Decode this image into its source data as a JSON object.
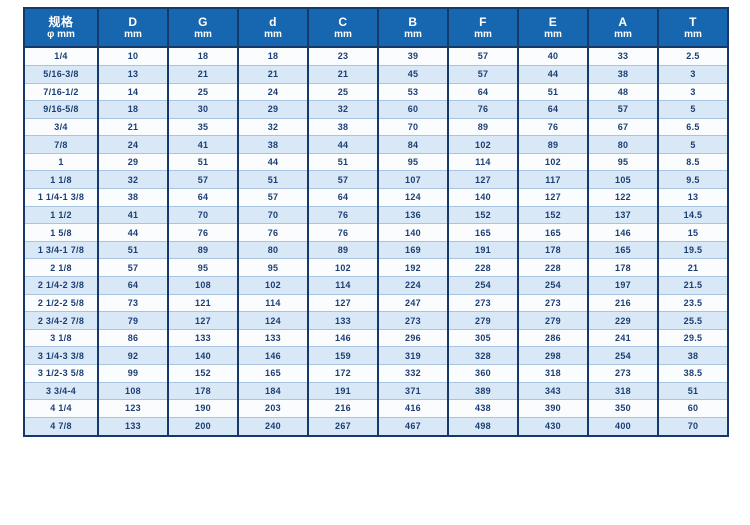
{
  "table": {
    "columns": [
      {
        "line1": "规格",
        "line2": "φ mm"
      },
      {
        "line1": "D",
        "line2": "mm"
      },
      {
        "line1": "G",
        "line2": "mm"
      },
      {
        "line1": "d",
        "line2": "mm"
      },
      {
        "line1": "C",
        "line2": "mm"
      },
      {
        "line1": "B",
        "line2": "mm"
      },
      {
        "line1": "F",
        "line2": "mm"
      },
      {
        "line1": "E",
        "line2": "mm"
      },
      {
        "line1": "A",
        "line2": "mm"
      },
      {
        "line1": "T",
        "line2": "mm"
      }
    ],
    "rows": [
      [
        "1/4",
        "10",
        "18",
        "18",
        "23",
        "39",
        "57",
        "40",
        "33",
        "2.5"
      ],
      [
        "5/16-3/8",
        "13",
        "21",
        "21",
        "21",
        "45",
        "57",
        "44",
        "38",
        "3"
      ],
      [
        "7/16-1/2",
        "14",
        "25",
        "24",
        "25",
        "53",
        "64",
        "51",
        "48",
        "3"
      ],
      [
        "9/16-5/8",
        "18",
        "30",
        "29",
        "32",
        "60",
        "76",
        "64",
        "57",
        "5"
      ],
      [
        "3/4",
        "21",
        "35",
        "32",
        "38",
        "70",
        "89",
        "76",
        "67",
        "6.5"
      ],
      [
        "7/8",
        "24",
        "41",
        "38",
        "44",
        "84",
        "102",
        "89",
        "80",
        "5"
      ],
      [
        "1",
        "29",
        "51",
        "44",
        "51",
        "95",
        "114",
        "102",
        "95",
        "8.5"
      ],
      [
        "1 1/8",
        "32",
        "57",
        "51",
        "57",
        "107",
        "127",
        "117",
        "105",
        "9.5"
      ],
      [
        "1 1/4-1 3/8",
        "38",
        "64",
        "57",
        "64",
        "124",
        "140",
        "127",
        "122",
        "13"
      ],
      [
        "1 1/2",
        "41",
        "70",
        "70",
        "76",
        "136",
        "152",
        "152",
        "137",
        "14.5"
      ],
      [
        "1 5/8",
        "44",
        "76",
        "76",
        "76",
        "140",
        "165",
        "165",
        "146",
        "15"
      ],
      [
        "1 3/4-1 7/8",
        "51",
        "89",
        "80",
        "89",
        "169",
        "191",
        "178",
        "165",
        "19.5"
      ],
      [
        "2 1/8",
        "57",
        "95",
        "95",
        "102",
        "192",
        "228",
        "228",
        "178",
        "21"
      ],
      [
        "2 1/4-2 3/8",
        "64",
        "108",
        "102",
        "114",
        "224",
        "254",
        "254",
        "197",
        "21.5"
      ],
      [
        "2 1/2-2 5/8",
        "73",
        "121",
        "114",
        "127",
        "247",
        "273",
        "273",
        "216",
        "23.5"
      ],
      [
        "2 3/4-2 7/8",
        "79",
        "127",
        "124",
        "133",
        "273",
        "279",
        "279",
        "229",
        "25.5"
      ],
      [
        "3 1/8",
        "86",
        "133",
        "133",
        "146",
        "296",
        "305",
        "286",
        "241",
        "29.5"
      ],
      [
        "3 1/4-3 3/8",
        "92",
        "140",
        "146",
        "159",
        "319",
        "328",
        "298",
        "254",
        "38"
      ],
      [
        "3 1/2-3 5/8",
        "99",
        "152",
        "165",
        "172",
        "332",
        "360",
        "318",
        "273",
        "38.5"
      ],
      [
        "3 3/4-4",
        "108",
        "178",
        "184",
        "191",
        "371",
        "389",
        "343",
        "318",
        "51"
      ],
      [
        "4 1/4",
        "123",
        "190",
        "203",
        "216",
        "416",
        "438",
        "390",
        "350",
        "60"
      ],
      [
        "4 7/8",
        "133",
        "200",
        "240",
        "267",
        "467",
        "498",
        "430",
        "400",
        "70"
      ]
    ],
    "colors": {
      "header_bg": "#1766b0",
      "header_text": "#ffffff",
      "border": "#16386b",
      "row_light": "#fafcfe",
      "row_alt": "#d9e8f6",
      "row_divider": "#a9c4e0",
      "cell_text": "#1c3e74"
    }
  }
}
